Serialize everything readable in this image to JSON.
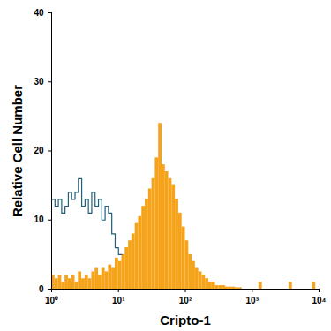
{
  "chart_data": {
    "type": "histogram",
    "x_label": "Cripto-1",
    "y_label": "Relative Cell Number",
    "log": "x",
    "xlim": [
      1,
      10000
    ],
    "ylim": [
      0,
      40
    ],
    "xticks": [
      {
        "value": 1,
        "label": "10⁰"
      },
      {
        "value": 10,
        "label": "10¹"
      },
      {
        "value": 100,
        "label": "10²"
      },
      {
        "value": 1000,
        "label": "10³"
      },
      {
        "value": 10000,
        "label": "10⁴"
      }
    ],
    "yticks": [
      0,
      10,
      20,
      30,
      40
    ],
    "bins": [
      1,
      1.122,
      1.259,
      1.413,
      1.585,
      1.778,
      1.995,
      2.239,
      2.512,
      2.818,
      3.162,
      3.548,
      3.981,
      4.467,
      5.012,
      5.623,
      6.31,
      7.079,
      7.943,
      8.913,
      10,
      11.22,
      12.59,
      14.13,
      15.85,
      17.78,
      19.95,
      22.39,
      25.12,
      28.18,
      31.62,
      35.48,
      39.81,
      44.67,
      50.12,
      56.23,
      63.1,
      70.79,
      79.43,
      89.13,
      100,
      112.2,
      125.9,
      141.3,
      158.5,
      177.8,
      199.5,
      223.9,
      251.2,
      281.8,
      316.2,
      354.8,
      398.1,
      446.7,
      501.2,
      562.3,
      631,
      707.9,
      794.3,
      891.3,
      1000,
      1122,
      1259,
      1413,
      1585,
      1778,
      1995,
      2239,
      2512,
      2818,
      3162,
      3548,
      3981,
      4467,
      5012,
      5623,
      6310,
      7079,
      7943,
      8913,
      10000
    ],
    "series": [
      {
        "type": "bar",
        "color": "#f5a31a",
        "values": [
          2,
          1.5,
          2,
          1,
          2,
          1.5,
          2,
          1,
          2.5,
          1.5,
          2,
          1.5,
          2.5,
          3,
          2,
          3,
          2.5,
          3.5,
          3,
          4.5,
          4,
          5,
          6,
          7,
          8,
          9.5,
          10.5,
          12,
          13,
          14.5,
          16,
          19,
          24,
          18,
          17,
          16,
          15,
          13,
          11,
          9,
          7,
          5,
          4,
          3,
          2.5,
          2,
          1.5,
          1,
          1,
          0.5,
          0.5,
          0.5,
          0.3,
          0.3,
          0.3,
          0.2,
          0.2,
          0,
          0,
          0,
          0,
          0,
          1,
          0,
          0,
          0,
          0,
          0,
          0,
          0,
          0,
          1,
          0,
          0,
          0,
          0,
          0,
          0,
          1,
          0
        ]
      },
      {
        "type": "line",
        "line_style": "step",
        "color": "#1f5f7a",
        "values": [
          13,
          12,
          13,
          11,
          12,
          14,
          13,
          14,
          16,
          12,
          13,
          11,
          14,
          12,
          13,
          10,
          12,
          11,
          8,
          6,
          5,
          null,
          null,
          null,
          null,
          null,
          null,
          null,
          null,
          null,
          null,
          null,
          null,
          null,
          null,
          null,
          null,
          null,
          null,
          null,
          null,
          null,
          null,
          null,
          null,
          null,
          null,
          null,
          null,
          null,
          null,
          null,
          null,
          null,
          null,
          null,
          null,
          null,
          null,
          null,
          null,
          null,
          null,
          null,
          null,
          null,
          null,
          null,
          null,
          null,
          null,
          null,
          null,
          null,
          null,
          null,
          null,
          null,
          null,
          null
        ]
      }
    ]
  }
}
